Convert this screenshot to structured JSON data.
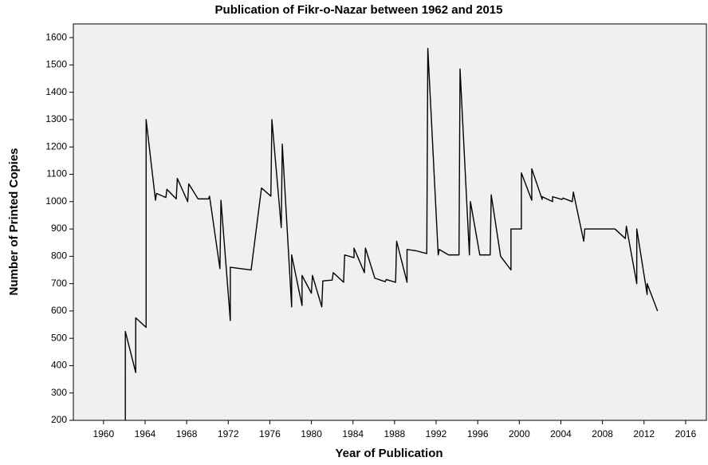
{
  "chart_data": {
    "type": "line",
    "title": "Publication of Fikr-o-Nazar between 1962 and 2015",
    "x_label": "Year of Publication",
    "y_label": "Number of Printed Copies",
    "xlim": [
      1957.1,
      2018
    ],
    "ylim": [
      200,
      1650
    ],
    "xticks": [
      1960,
      1964,
      1968,
      1972,
      1976,
      1980,
      1984,
      1988,
      1992,
      1996,
      2000,
      2004,
      2008,
      2012,
      2016
    ],
    "yticks": [
      200,
      300,
      400,
      500,
      600,
      700,
      800,
      900,
      1000,
      1100,
      1200,
      1300,
      1400,
      1500,
      1600
    ],
    "series": [
      {
        "name": "Number of Printed Copies",
        "color": "#000000",
        "x": [
          1962.1,
          1962.1,
          1963.1,
          1963.1,
          1964.1,
          1964.1,
          1965.0,
          1965.1,
          1966.0,
          1966.1,
          1967.0,
          1967.1,
          1968.1,
          1968.2,
          1969.1,
          1970.1,
          1970.2,
          1971.2,
          1971.3,
          1972.2,
          1972.2,
          1973.2,
          1974.2,
          1975.2,
          1976.1,
          1976.2,
          1977.1,
          1977.2,
          1978.1,
          1978.1,
          1979.1,
          1979.1,
          1980.0,
          1980.1,
          1981.0,
          1981.1,
          1982.0,
          1982.1,
          1983.1,
          1983.2,
          1984.1,
          1984.1,
          1985.1,
          1985.2,
          1986.1,
          1987.1,
          1987.2,
          1988.1,
          1988.2,
          1989.2,
          1989.2,
          1990.1,
          1991.1,
          1991.2,
          1992.2,
          1992.3,
          1993.2,
          1994.2,
          1994.3,
          1995.2,
          1995.3,
          1996.2,
          1997.2,
          1997.3,
          1998.2,
          1999.2,
          1999.2,
          2000.2,
          2000.2,
          2001.2,
          2001.2,
          2002.2,
          2002.2,
          2003.2,
          2003.2,
          2004.1,
          2004.2,
          2005.1,
          2005.2,
          2006.2,
          2006.3,
          2009.2,
          2010.2,
          2010.3,
          2011.3,
          2011.3,
          2012.3,
          2012.3,
          2013.3
        ],
        "values": [
          200,
          525,
          375,
          575,
          540,
          1300,
          1005,
          1030,
          1015,
          1045,
          1010,
          1085,
          1000,
          1065,
          1010,
          1010,
          1020,
          755,
          1005,
          565,
          760,
          755,
          750,
          1050,
          1020,
          1300,
          905,
          1210,
          615,
          805,
          620,
          730,
          665,
          730,
          615,
          710,
          713,
          740,
          705,
          805,
          795,
          830,
          740,
          830,
          720,
          707,
          715,
          705,
          855,
          705,
          825,
          820,
          810,
          1560,
          805,
          825,
          805,
          805,
          1485,
          805,
          1000,
          805,
          805,
          1025,
          800,
          750,
          900,
          900,
          1105,
          1005,
          1120,
          1008,
          1018,
          1000,
          1018,
          1008,
          1013,
          1000,
          1035,
          855,
          900,
          900,
          865,
          910,
          700,
          900,
          660,
          700,
          600
        ]
      }
    ]
  }
}
